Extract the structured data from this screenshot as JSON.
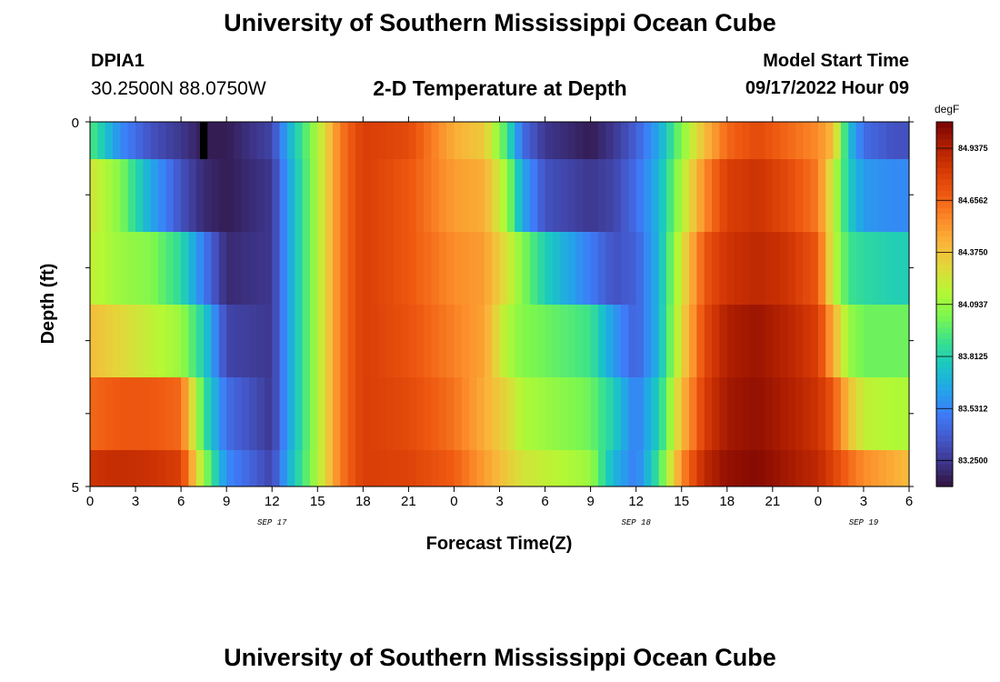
{
  "page": {
    "title": "University of Southern Mississippi Ocean Cube",
    "footer_title": "University of Southern Mississippi Ocean Cube",
    "station_id": "DPIA1",
    "coordinates": "30.2500N  88.0750W",
    "plot_title": "2-D Temperature at Depth",
    "model_start_label": "Model Start Time",
    "model_start_value": "09/17/2022 Hour 09"
  },
  "colors": {
    "scale": [
      "#30123b",
      "#3d358b",
      "#4458cb",
      "#3e7cf9",
      "#22a5e9",
      "#1ac7c2",
      "#3be28c",
      "#7cf74f",
      "#b4f834",
      "#e0d93a",
      "#f9b63a",
      "#fc8b29",
      "#ef5a11",
      "#d63a05",
      "#b01f01",
      "#7a0403"
    ]
  },
  "chart_data": {
    "type": "heatmap",
    "xlabel": "Forecast Time(Z)",
    "ylabel": "Depth (ft)",
    "x_tick_labels": [
      "0",
      "3",
      "6",
      "9",
      "12",
      "15",
      "18",
      "21",
      "0",
      "3",
      "6",
      "9",
      "12",
      "15",
      "18",
      "21",
      "0",
      "3",
      "6"
    ],
    "date_labels": [
      {
        "text": "SEP 17",
        "hour": 12
      },
      {
        "text": "SEP 18",
        "hour": 36
      },
      {
        "text": "SEP 19",
        "hour": 51
      }
    ],
    "y_tick_labels": [
      "0",
      "5"
    ],
    "ylim": [
      0,
      5
    ],
    "x_range_hours": [
      0,
      54
    ],
    "colorbar": {
      "unit": "degF",
      "min": 83.11,
      "max": 85.08,
      "labels": [
        "84.9375",
        "84.6562",
        "84.3750",
        "84.0937",
        "83.8125",
        "83.5312",
        "83.2500"
      ]
    },
    "time_step_hours": 0.5,
    "depth_rows": [
      "0-0.5 ft",
      "0.5-1.5 ft",
      "1.5-2.5 ft",
      "2.5-3.5 ft",
      "3.5-4.5 ft",
      "4.5-5 ft"
    ],
    "missing_value_hours": [
      7.25,
      7.75
    ],
    "keyframes": [
      {
        "t": 0,
        "rows": [
          83.95,
          84.25,
          84.2,
          84.4,
          84.65,
          84.85
        ]
      },
      {
        "t": 2,
        "rows": [
          83.55,
          84.05,
          84.1,
          84.3,
          84.7,
          84.88
        ]
      },
      {
        "t": 4,
        "rows": [
          83.35,
          83.65,
          84.05,
          84.2,
          84.7,
          84.86
        ]
      },
      {
        "t": 6,
        "rows": [
          83.25,
          83.35,
          83.85,
          84.1,
          84.65,
          84.8
        ]
      },
      {
        "t": 7.5,
        "rows": [
          83.15,
          83.2,
          83.5,
          83.8,
          83.9,
          84.1
        ]
      },
      {
        "t": 9,
        "rows": [
          83.15,
          83.15,
          83.2,
          83.3,
          83.45,
          83.55
        ]
      },
      {
        "t": 12,
        "rows": [
          83.3,
          83.25,
          83.25,
          83.25,
          83.25,
          83.3
        ]
      },
      {
        "t": 13,
        "rows": [
          83.65,
          83.6,
          83.6,
          83.6,
          83.6,
          83.65
        ]
      },
      {
        "t": 15,
        "rows": [
          84.15,
          84.15,
          84.15,
          84.15,
          84.15,
          84.15
        ]
      },
      {
        "t": 16.5,
        "rows": [
          84.6,
          84.6,
          84.6,
          84.6,
          84.6,
          84.6
        ]
      },
      {
        "t": 18,
        "rows": [
          84.8,
          84.8,
          84.8,
          84.8,
          84.8,
          84.8
        ]
      },
      {
        "t": 21,
        "rows": [
          84.75,
          84.7,
          84.7,
          84.72,
          84.75,
          84.78
        ]
      },
      {
        "t": 24,
        "rows": [
          84.45,
          84.5,
          84.55,
          84.58,
          84.62,
          84.68
        ]
      },
      {
        "t": 26,
        "rows": [
          84.35,
          84.45,
          84.5,
          84.48,
          84.45,
          84.5
        ]
      },
      {
        "t": 27.5,
        "rows": [
          83.9,
          84.1,
          84.25,
          84.15,
          84.3,
          84.35
        ]
      },
      {
        "t": 28.5,
        "rows": [
          83.45,
          83.65,
          84.05,
          84.05,
          84.15,
          84.25
        ]
      },
      {
        "t": 30,
        "rows": [
          83.25,
          83.35,
          83.8,
          84.0,
          84.1,
          84.2
        ]
      },
      {
        "t": 33,
        "rows": [
          83.15,
          83.25,
          83.5,
          83.9,
          84.0,
          84.1
        ]
      },
      {
        "t": 34.5,
        "rows": [
          83.25,
          83.3,
          83.35,
          83.6,
          83.8,
          83.7
        ]
      },
      {
        "t": 36,
        "rows": [
          83.4,
          83.45,
          83.4,
          83.4,
          83.5,
          83.5
        ]
      },
      {
        "t": 37.5,
        "rows": [
          83.65,
          83.7,
          83.7,
          83.7,
          83.8,
          83.9
        ]
      },
      {
        "t": 39,
        "rows": [
          84.05,
          84.15,
          84.25,
          84.3,
          84.4,
          84.55
        ]
      },
      {
        "t": 40.5,
        "rows": [
          84.4,
          84.55,
          84.7,
          84.75,
          84.8,
          84.9
        ]
      },
      {
        "t": 42,
        "rows": [
          84.65,
          84.8,
          84.85,
          84.95,
          84.98,
          85.02
        ]
      },
      {
        "t": 44,
        "rows": [
          84.75,
          84.85,
          84.9,
          85.0,
          85.02,
          85.05
        ]
      },
      {
        "t": 46,
        "rows": [
          84.65,
          84.75,
          84.85,
          84.92,
          84.95,
          84.98
        ]
      },
      {
        "t": 48,
        "rows": [
          84.55,
          84.6,
          84.7,
          84.8,
          84.85,
          84.9
        ]
      },
      {
        "t": 49,
        "rows": [
          84.4,
          84.2,
          84.2,
          84.45,
          84.7,
          84.78
        ]
      },
      {
        "t": 50,
        "rows": [
          83.75,
          83.8,
          83.9,
          84.1,
          84.4,
          84.65
        ]
      },
      {
        "t": 51,
        "rows": [
          83.45,
          83.6,
          83.85,
          84.0,
          84.2,
          84.55
        ]
      },
      {
        "t": 53,
        "rows": [
          83.35,
          83.55,
          83.8,
          84.0,
          84.15,
          84.45
        ]
      },
      {
        "t": 54,
        "rows": [
          83.35,
          83.55,
          83.8,
          84.0,
          84.15,
          84.4
        ]
      }
    ]
  }
}
